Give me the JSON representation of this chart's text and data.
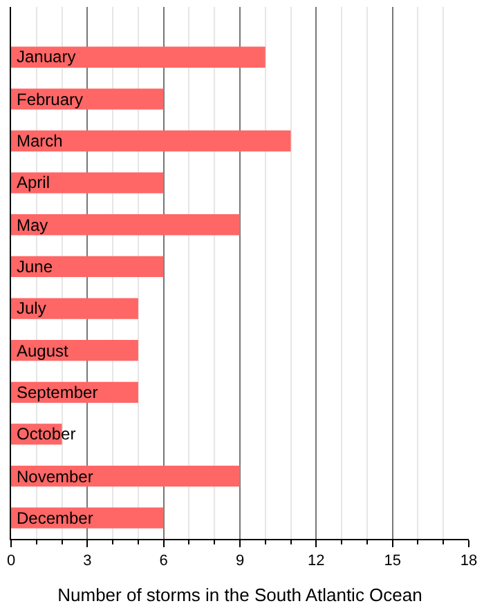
{
  "chart_data": {
    "type": "bar",
    "orientation": "horizontal",
    "xlabel": "Number of storms in the South Atlantic Ocean",
    "categories": [
      "January",
      "February",
      "March",
      "April",
      "May",
      "June",
      "July",
      "August",
      "September",
      "October",
      "November",
      "December"
    ],
    "values": [
      10,
      6,
      11,
      6,
      9,
      6,
      5,
      5,
      5,
      2,
      9,
      6
    ],
    "color": "#ff6666",
    "xlim": [
      0,
      18
    ],
    "xticks": [
      0,
      {
        "value": 1,
        "label": null
      },
      {
        "value": 2,
        "label": null
      },
      3,
      {
        "value": 4,
        "label": null
      },
      {
        "value": 5,
        "label": null
      },
      6,
      {
        "value": 7,
        "label": null
      },
      {
        "value": 8,
        "label": null
      },
      9,
      {
        "value": 10,
        "label": null
      },
      {
        "value": 11,
        "label": null
      },
      12,
      {
        "value": 13,
        "label": null
      },
      {
        "value": 14,
        "label": null
      },
      15,
      {
        "value": 16,
        "label": null
      },
      {
        "value": 17,
        "label": null
      },
      18
    ],
    "grid": "x"
  }
}
